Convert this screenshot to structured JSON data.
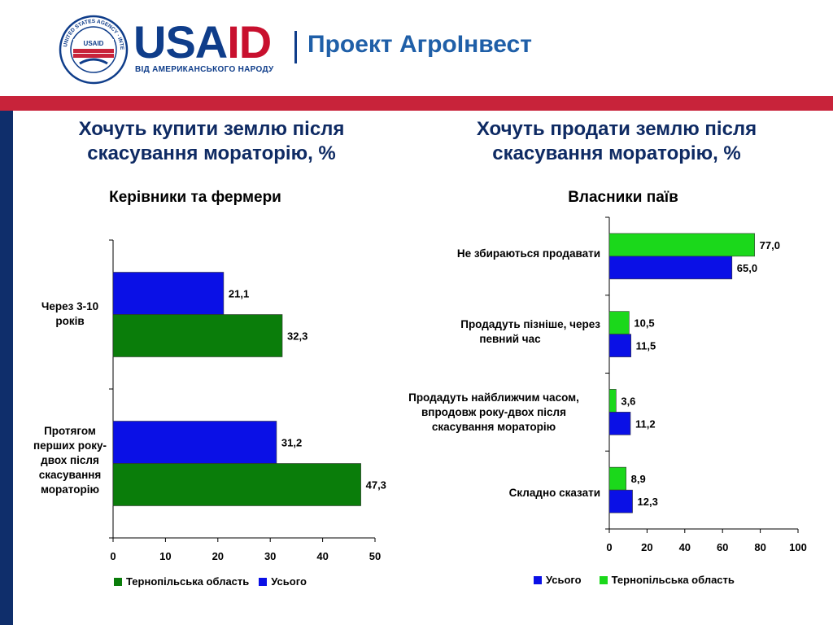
{
  "header": {
    "brand": "USAID",
    "brand_first": "USA",
    "brand_second": "ID",
    "tagline": "ВІД АМЕРИКАНСЬКОГО НАРОДУ",
    "project": "Проект АгроІнвест",
    "seal_text": "UNITED STATES AGENCY · INTERNATIONAL DEVELOPMENT",
    "seal_mark": "USAID"
  },
  "colors": {
    "brand_blue": "#0f3d8a",
    "brand_red": "#c8233a",
    "series_blue": "#0a10e6",
    "series_dark_green": "#0a7d0a",
    "series_light_green": "#1bd81b"
  },
  "left": {
    "title_line1": "Хочуть купити землю після",
    "title_line2": "скасування мораторію, %",
    "subtitle": "Керівники та фермери",
    "categories": [
      {
        "lines": [
          "Через 3-10",
          "років"
        ]
      },
      {
        "lines": [
          "Протягом",
          "перших року-",
          "двох після",
          "скасування",
          "мораторію"
        ]
      }
    ],
    "legend": [
      "Тернопільська область",
      "Усього"
    ]
  },
  "right": {
    "title_line1": "Хочуть продати землю після",
    "title_line2": "скасування мораторію, %",
    "subtitle": "Власники паїв",
    "categories": [
      {
        "lines": [
          "Не збираються продавати"
        ]
      },
      {
        "lines": [
          "Продадуть пізніше, через",
          "певний час"
        ]
      },
      {
        "lines": [
          "Продадуть найближчим часом,",
          "впродовж року-двох після",
          "скасування мораторію"
        ]
      },
      {
        "lines": [
          "Складно сказати"
        ]
      }
    ],
    "legend": [
      "Усього",
      "Тернопільська область"
    ]
  },
  "chart_data": [
    {
      "type": "bar",
      "orientation": "horizontal",
      "title": "Хочуть купити землю після скасування мораторію, %",
      "subtitle": "Керівники та фермери",
      "categories": [
        "Через 3-10 років",
        "Протягом перших року-двох після скасування мораторію"
      ],
      "series": [
        {
          "name": "Усього",
          "color": "#0a10e6",
          "values": [
            21.1,
            31.2
          ],
          "labels": [
            "21,1",
            "31,2"
          ]
        },
        {
          "name": "Тернопільська область",
          "color": "#0a7d0a",
          "values": [
            32.3,
            47.3
          ],
          "labels": [
            "32,3",
            "47,3"
          ]
        }
      ],
      "xlim": [
        0,
        50
      ],
      "ticks": [
        0,
        10,
        20,
        30,
        40,
        50
      ],
      "tick_labels": [
        "0",
        "10",
        "20",
        "30",
        "40",
        "50"
      ],
      "legend_position": "bottom",
      "grid": false
    },
    {
      "type": "bar",
      "orientation": "horizontal",
      "title": "Хочуть продати землю після скасування мораторію, %",
      "subtitle": "Власники паїв",
      "categories": [
        "Не збираються продавати",
        "Продадуть пізніше, через певний час",
        "Продадуть найближчим часом, впродовж року-двох після скасування мораторію",
        "Складно сказати"
      ],
      "series": [
        {
          "name": "Тернопільська область",
          "color": "#1bd81b",
          "values": [
            77.0,
            10.5,
            3.6,
            8.9
          ],
          "labels": [
            "77,0",
            "10,5",
            "3,6",
            "8,9"
          ]
        },
        {
          "name": "Усього",
          "color": "#0a10e6",
          "values": [
            65.0,
            11.5,
            11.2,
            12.3
          ],
          "labels": [
            "65,0",
            "11,5",
            "11,2",
            "12,3"
          ]
        }
      ],
      "xlim": [
        0,
        100
      ],
      "ticks": [
        0,
        20,
        40,
        60,
        80,
        100
      ],
      "tick_labels": [
        "0",
        "20",
        "40",
        "60",
        "80",
        "100"
      ],
      "legend_position": "bottom",
      "grid": false
    }
  ]
}
